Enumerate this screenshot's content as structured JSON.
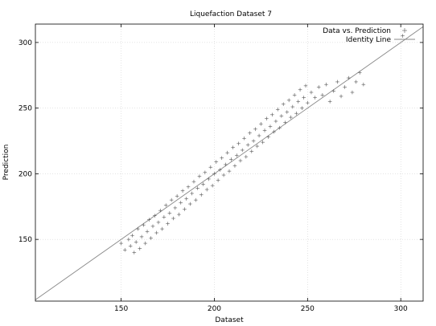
{
  "chart_data": {
    "type": "scatter",
    "title": "Liquefaction Dataset 7",
    "xlabel": "Dataset",
    "ylabel": "Prediction",
    "xlim": [
      104,
      312
    ],
    "ylim": [
      103,
      314
    ],
    "xticks": [
      150,
      200,
      250,
      300
    ],
    "yticks": [
      150,
      200,
      250,
      300
    ],
    "grid": true,
    "legend_position": "top-right",
    "series": [
      {
        "name": "Data vs. Prediction",
        "marker": "+",
        "color": "#555555",
        "points": [
          [
            150,
            147
          ],
          [
            152,
            142
          ],
          [
            154,
            150
          ],
          [
            155,
            145
          ],
          [
            156,
            153
          ],
          [
            157,
            140
          ],
          [
            158,
            148
          ],
          [
            159,
            158
          ],
          [
            160,
            143
          ],
          [
            161,
            152
          ],
          [
            162,
            161
          ],
          [
            163,
            147
          ],
          [
            164,
            156
          ],
          [
            165,
            165
          ],
          [
            166,
            151
          ],
          [
            167,
            160
          ],
          [
            168,
            168
          ],
          [
            169,
            155
          ],
          [
            170,
            163
          ],
          [
            171,
            172
          ],
          [
            172,
            158
          ],
          [
            173,
            167
          ],
          [
            174,
            176
          ],
          [
            175,
            162
          ],
          [
            176,
            170
          ],
          [
            177,
            180
          ],
          [
            178,
            166
          ],
          [
            179,
            174
          ],
          [
            180,
            183
          ],
          [
            181,
            169
          ],
          [
            182,
            178
          ],
          [
            183,
            187
          ],
          [
            184,
            173
          ],
          [
            185,
            181
          ],
          [
            186,
            190
          ],
          [
            187,
            177
          ],
          [
            188,
            185
          ],
          [
            189,
            194
          ],
          [
            190,
            180
          ],
          [
            191,
            189
          ],
          [
            192,
            198
          ],
          [
            193,
            184
          ],
          [
            194,
            192
          ],
          [
            195,
            201
          ],
          [
            196,
            188
          ],
          [
            197,
            196
          ],
          [
            198,
            205
          ],
          [
            199,
            191
          ],
          [
            200,
            200
          ],
          [
            201,
            209
          ],
          [
            202,
            195
          ],
          [
            203,
            203
          ],
          [
            204,
            212
          ],
          [
            205,
            199
          ],
          [
            206,
            207
          ],
          [
            207,
            216
          ],
          [
            208,
            202
          ],
          [
            209,
            211
          ],
          [
            210,
            220
          ],
          [
            211,
            206
          ],
          [
            212,
            214
          ],
          [
            213,
            223
          ],
          [
            214,
            210
          ],
          [
            215,
            218
          ],
          [
            216,
            227
          ],
          [
            217,
            213
          ],
          [
            218,
            222
          ],
          [
            219,
            231
          ],
          [
            220,
            217
          ],
          [
            221,
            225
          ],
          [
            222,
            234
          ],
          [
            223,
            221
          ],
          [
            224,
            229
          ],
          [
            225,
            238
          ],
          [
            226,
            224
          ],
          [
            227,
            233
          ],
          [
            228,
            242
          ],
          [
            229,
            228
          ],
          [
            230,
            236
          ],
          [
            231,
            245
          ],
          [
            232,
            232
          ],
          [
            233,
            240
          ],
          [
            234,
            249
          ],
          [
            235,
            235
          ],
          [
            236,
            244
          ],
          [
            237,
            253
          ],
          [
            238,
            239
          ],
          [
            239,
            247
          ],
          [
            240,
            256
          ],
          [
            241,
            243
          ],
          [
            242,
            251
          ],
          [
            243,
            260
          ],
          [
            244,
            246
          ],
          [
            245,
            255
          ],
          [
            246,
            264
          ],
          [
            247,
            250
          ],
          [
            248,
            258
          ],
          [
            249,
            267
          ],
          [
            250,
            254
          ],
          [
            252,
            262
          ],
          [
            254,
            258
          ],
          [
            256,
            266
          ],
          [
            258,
            260
          ],
          [
            260,
            268
          ],
          [
            262,
            255
          ],
          [
            264,
            263
          ],
          [
            266,
            270
          ],
          [
            268,
            259
          ],
          [
            270,
            266
          ],
          [
            272,
            273
          ],
          [
            274,
            262
          ],
          [
            276,
            270
          ],
          [
            278,
            277
          ],
          [
            280,
            268
          ],
          [
            301,
            305
          ]
        ]
      },
      {
        "name": "Identity Line",
        "marker": "line",
        "color": "#888888",
        "line": [
          [
            104,
            104
          ],
          [
            312,
            312
          ]
        ]
      }
    ]
  }
}
